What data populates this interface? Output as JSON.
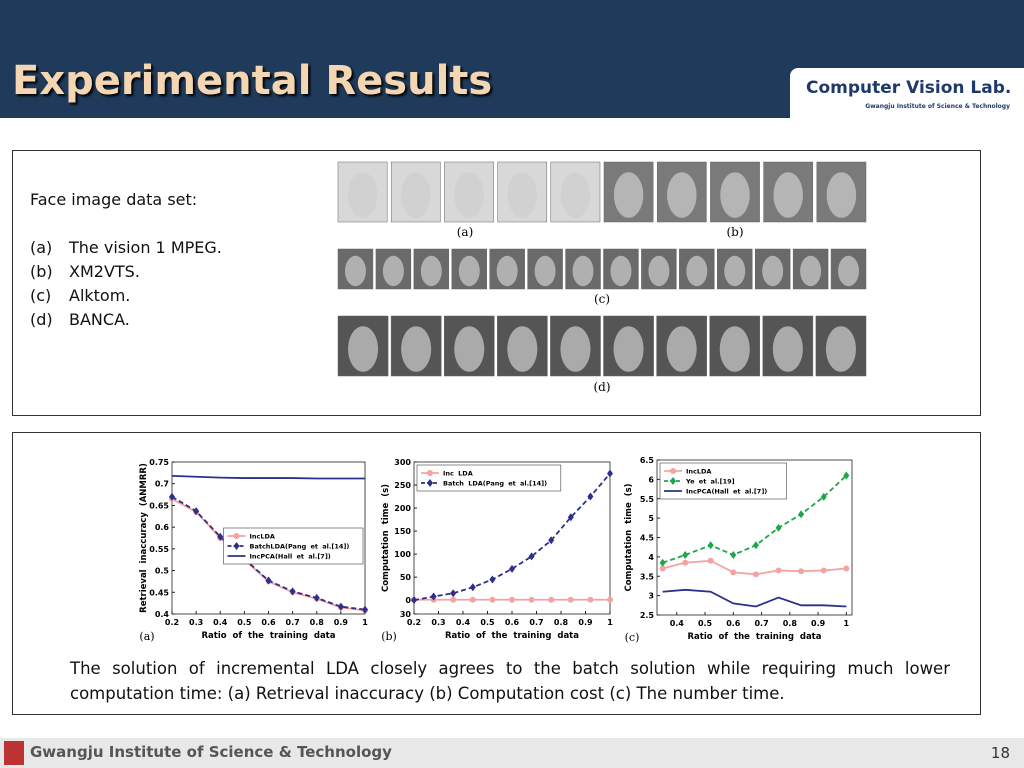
{
  "header": {
    "title": "Experimental Results",
    "logo": "Computer Vision Lab.",
    "logo_sub": "Gwangju Institute of Science & Technology"
  },
  "dataset": {
    "heading": "Face image data set:",
    "items": [
      {
        "marker": "(a)",
        "text": "The vision 1 MPEG."
      },
      {
        "marker": "(b)",
        "text": "XM2VTS."
      },
      {
        "marker": "(c)",
        "text": "Alktom."
      },
      {
        "marker": "(d)",
        "text": "BANCA."
      }
    ]
  },
  "face_captions": [
    "(a)",
    "(b)",
    "(c)",
    "(d)"
  ],
  "chart_data": [
    {
      "type": "line",
      "label": "(a)",
      "xlabel": "Ratio of the training data",
      "ylabel": "Retrieval inaccuracy (ANMRR)",
      "x": [
        0.2,
        0.3,
        0.4,
        0.5,
        0.6,
        0.7,
        0.8,
        0.9,
        1
      ],
      "xlim": [
        0.2,
        1
      ],
      "xticks": [
        0.2,
        0.3,
        0.4,
        0.5,
        0.6,
        0.7,
        0.8,
        0.9,
        1
      ],
      "ylim": [
        0.4,
        0.75
      ],
      "yticks": [
        0.4,
        0.45,
        0.5,
        0.55,
        0.6,
        0.65,
        0.7,
        0.75
      ],
      "legend": "center right",
      "series": [
        {
          "name": "IncLDA",
          "color": "#f4a3a3",
          "marker": "circle",
          "dash": false,
          "values": [
            0.665,
            0.635,
            0.575,
            0.525,
            0.475,
            0.45,
            0.435,
            0.415,
            0.408
          ]
        },
        {
          "name": "BatchLDA(Pang et al.[14])",
          "color": "#2e2f8a",
          "marker": "diamond",
          "dash": true,
          "values": [
            0.67,
            0.637,
            0.578,
            0.527,
            0.477,
            0.452,
            0.437,
            0.417,
            0.41
          ]
        },
        {
          "name": "IncPCA(Hall et al.[7])",
          "color": "#2e2f8a",
          "marker": "none",
          "dash": false,
          "values": [
            0.718,
            0.716,
            0.714,
            0.713,
            0.713,
            0.713,
            0.712,
            0.712,
            0.712
          ]
        }
      ]
    },
    {
      "type": "line",
      "label": "(b)",
      "xlabel": "Ratio of the training data",
      "ylabel": "Computation time (s)",
      "x": [
        0.2,
        0.28,
        0.36,
        0.44,
        0.52,
        0.6,
        0.68,
        0.76,
        0.84,
        0.92,
        1
      ],
      "xlim": [
        0.2,
        1
      ],
      "xticks": [
        0.2,
        0.3,
        0.4,
        0.5,
        0.6,
        0.7,
        0.8,
        0.9,
        1
      ],
      "ylim": [
        -30,
        300
      ],
      "yticks": [
        {
          "value": -30,
          "label": "30"
        },
        0,
        50,
        100,
        150,
        200,
        250,
        300
      ],
      "legend": "upper left",
      "series": [
        {
          "name": "Inc LDA",
          "color": "#f4a3a3",
          "marker": "circle",
          "dash": false,
          "values": [
            1,
            1,
            1,
            1,
            1,
            1,
            1,
            1,
            1,
            1,
            1
          ]
        },
        {
          "name": "Batch LDA(Pang et al.[14])",
          "color": "#2e2f8a",
          "marker": "diamond",
          "dash": true,
          "values": [
            0,
            8,
            15,
            28,
            45,
            68,
            95,
            130,
            180,
            225,
            275
          ]
        }
      ]
    },
    {
      "type": "line",
      "label": "(c)",
      "xlabel": "Ratio of the training data",
      "ylabel": "Computation time (s)",
      "x": [
        0.35,
        0.43,
        0.52,
        0.6,
        0.68,
        0.76,
        0.84,
        0.92,
        1
      ],
      "xlim": [
        0.33,
        1.02
      ],
      "xticks": [
        0.4,
        0.5,
        0.6,
        0.7,
        0.8,
        0.9,
        1
      ],
      "ylim": [
        2.5,
        6.5
      ],
      "yticks": [
        2.5,
        3,
        3.5,
        4,
        4.5,
        5,
        5.5,
        6,
        6.5
      ],
      "legend": "upper left",
      "series": [
        {
          "name": "IncLDA",
          "color": "#f4a3a3",
          "marker": "circle",
          "dash": false,
          "values": [
            3.7,
            3.85,
            3.9,
            3.6,
            3.55,
            3.65,
            3.63,
            3.65,
            3.7
          ]
        },
        {
          "name": "Ye et al.[19]",
          "color": "#1fa64a",
          "marker": "diamond",
          "dash": true,
          "values": [
            3.85,
            4.05,
            4.3,
            4.05,
            4.3,
            4.75,
            5.1,
            5.55,
            6.1
          ]
        },
        {
          "name": "IncPCA(Hall et al.[7])",
          "color": "#2e2f8a",
          "marker": "none",
          "dash": false,
          "values": [
            3.1,
            3.15,
            3.1,
            2.8,
            2.72,
            2.95,
            2.75,
            2.75,
            2.72
          ]
        }
      ]
    }
  ],
  "caption": "The solution of incremental LDA closely agrees to the batch solution while requiring much lower computation time: (a) Retrieval inaccuracy (b) Computation cost (c) The number time.",
  "footer": {
    "institute": "Gwangju Institute of Science & Technology",
    "page": "18"
  }
}
